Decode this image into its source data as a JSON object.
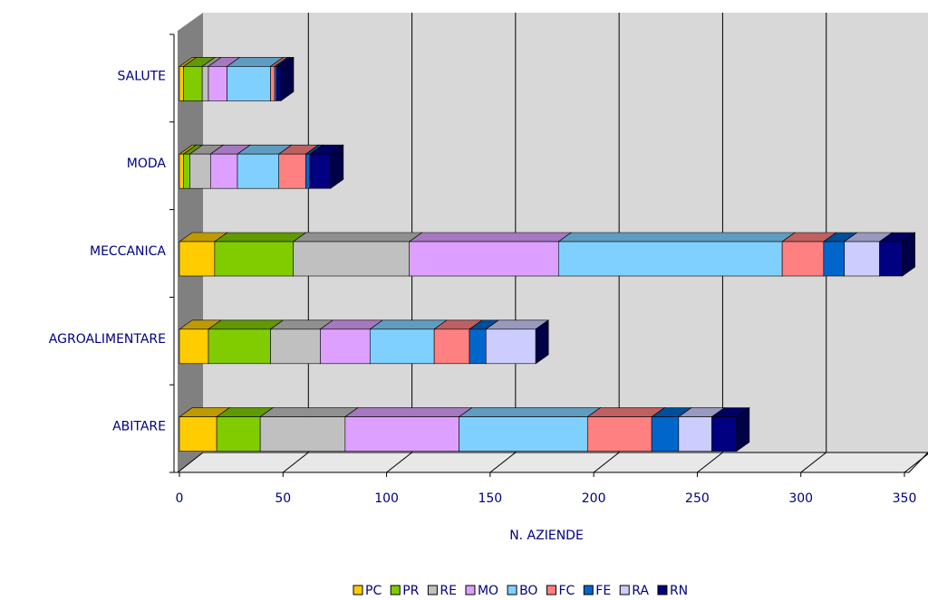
{
  "chart_data": {
    "type": "bar",
    "orientation": "horizontal",
    "stacked": true,
    "x_label": "N. AZIENDE",
    "categories": [
      "ABITARE",
      "AGROALIMENTARE",
      "MECCANICA",
      "MODA",
      "SALUTE"
    ],
    "series": [
      {
        "name": "PC",
        "color": "#ffcc00",
        "values": [
          18,
          14,
          17,
          2,
          2
        ]
      },
      {
        "name": "PR",
        "color": "#80cc00",
        "values": [
          21,
          30,
          38,
          3,
          9
        ]
      },
      {
        "name": "RE",
        "color": "#c0c0c0",
        "values": [
          41,
          24,
          56,
          10,
          3
        ]
      },
      {
        "name": "MO",
        "color": "#dda0ff",
        "values": [
          55,
          24,
          72,
          13,
          9
        ]
      },
      {
        "name": "BO",
        "color": "#80d0ff",
        "values": [
          62,
          31,
          108,
          20,
          21
        ]
      },
      {
        "name": "FC",
        "color": "#ff8080",
        "values": [
          31,
          17,
          20,
          13,
          2
        ]
      },
      {
        "name": "FE",
        "color": "#0066cc",
        "values": [
          13,
          8,
          10,
          2,
          1
        ]
      },
      {
        "name": "RA",
        "color": "#ccccff",
        "values": [
          16,
          24,
          17,
          0,
          0
        ]
      },
      {
        "name": "RN",
        "color": "#000080",
        "values": [
          12,
          0,
          11,
          10,
          2
        ]
      }
    ],
    "xlim": [
      0,
      350
    ],
    "xticks": [
      0,
      50,
      100,
      150,
      200,
      250,
      300,
      350
    ],
    "grid": true,
    "legend": "bottom"
  }
}
